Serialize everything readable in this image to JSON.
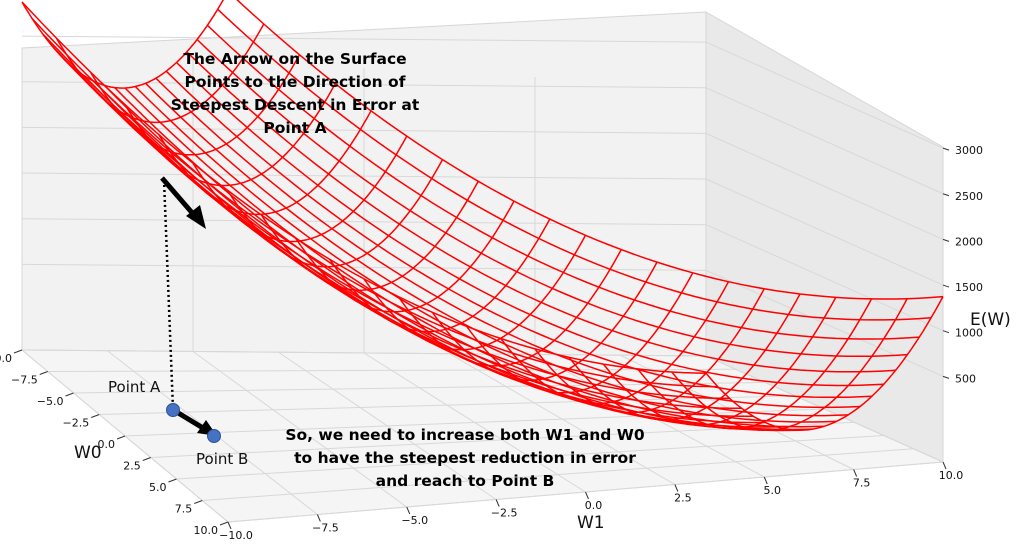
{
  "chart_data": {
    "type": "surface",
    "surface": {
      "function": "E(W) = 10 * ((W0 + 5)^2 + (W1 - 10)^2)",
      "color": "#ff0000",
      "w0_range": [
        -10,
        10
      ],
      "w1_range": [
        -10,
        10
      ]
    },
    "axes": {
      "x": {
        "label": "W1",
        "ticks": [
          "−10.0",
          "−7.5",
          "−5.0",
          "−2.5",
          "0.0",
          "2.5",
          "5.0",
          "7.5",
          "10.0"
        ]
      },
      "y": {
        "label": "W0",
        "ticks": [
          "−10.0",
          "−7.5",
          "−5.0",
          "−2.5",
          "0.0",
          "2.5",
          "5.0",
          "7.5",
          "10.0"
        ]
      },
      "z": {
        "label": "E(W)",
        "ticks": [
          "500",
          "1000",
          "1500",
          "2000",
          "2500",
          "3000"
        ]
      }
    },
    "points": [
      {
        "label": "Point A",
        "color": "#4472c4"
      },
      {
        "label": "Point B",
        "color": "#4472c4"
      }
    ],
    "annotations": {
      "top": "The Arrow on the Surface\nPoints to the Direction of\nSteepest Descent in Error at\nPoint A",
      "bottom": "So, we need to increase both W1 and W0\nto have the steepest reduction in error\nand reach to Point B"
    },
    "grid": true
  }
}
